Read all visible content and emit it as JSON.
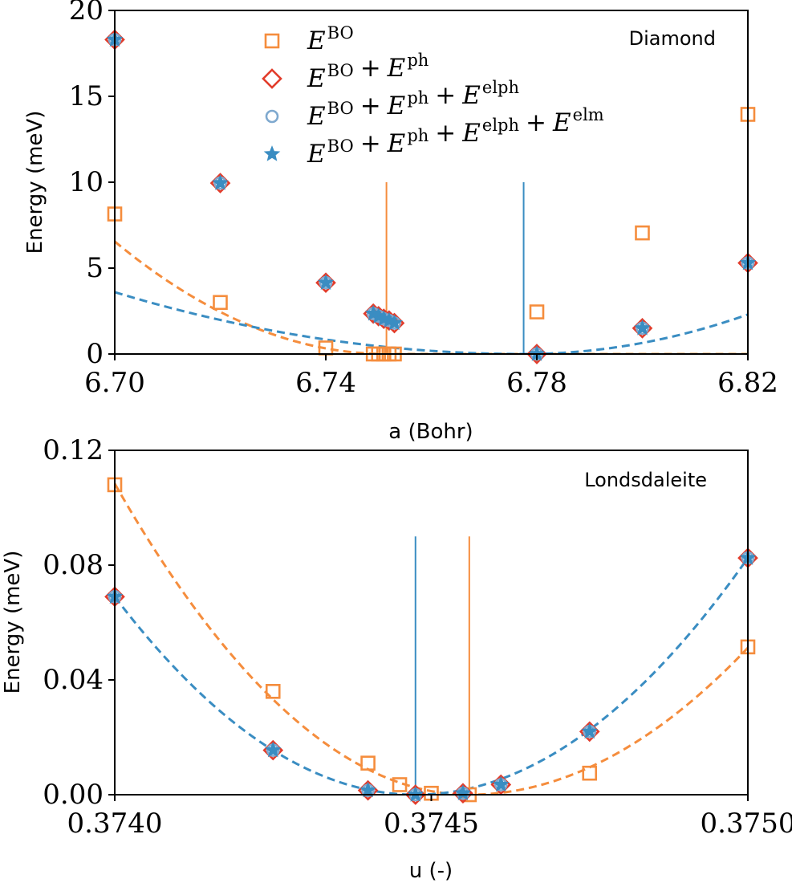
{
  "chart_data": [
    {
      "type": "line",
      "panel_label": "Diamond",
      "xlabel": "a (Bohr)",
      "ylabel": "Energy (meV)",
      "xlim": [
        6.7,
        6.82
      ],
      "ylim": [
        0,
        20
      ],
      "xticks": [
        6.7,
        6.74,
        6.78,
        6.82
      ],
      "xtick_labels": [
        "6.70",
        "6.74",
        "6.78",
        "6.82"
      ],
      "yticks": [
        0,
        5,
        10,
        15,
        20
      ],
      "ytick_labels": [
        "0",
        "5",
        "10",
        "15",
        "20"
      ],
      "legend": {
        "placement": "upper-center",
        "entries": [
          {
            "marker": "square",
            "color": "#f58d3d",
            "terms": [
              {
                "sym": "E",
                "sup": "BO"
              }
            ]
          },
          {
            "marker": "diamond",
            "color": "#e23c2b",
            "terms": [
              {
                "sym": "E",
                "sup": "BO"
              },
              {
                "sym": "E",
                "sup": "ph"
              }
            ]
          },
          {
            "marker": "circle",
            "color": "#7fa9cf",
            "terms": [
              {
                "sym": "E",
                "sup": "BO"
              },
              {
                "sym": "E",
                "sup": "ph"
              },
              {
                "sym": "E",
                "sup": "elph"
              }
            ]
          },
          {
            "marker": "star",
            "color": "#3a8dc2",
            "terms": [
              {
                "sym": "E",
                "sup": "BO"
              },
              {
                "sym": "E",
                "sup": "ph"
              },
              {
                "sym": "E",
                "sup": "elph"
              },
              {
                "sym": "E",
                "sup": "elm"
              }
            ]
          }
        ]
      },
      "fits": [
        {
          "color": "#f58d3d",
          "x0": 6.7515,
          "a": 6.55,
          "b": 0,
          "c": 0.0
        },
        {
          "color": "#3a8dc2",
          "x0": 6.7775,
          "a": 3.6,
          "b": 2.3,
          "c": 0.0
        }
      ],
      "vlines": [
        {
          "x": 6.7515,
          "y0": 0,
          "y1": 10,
          "color": "#f58d3d"
        },
        {
          "x": 6.7775,
          "y0": 0,
          "y1": 10,
          "color": "#3a8dc2"
        }
      ],
      "series": [
        {
          "marker": "square",
          "color": "#f58d3d",
          "x": [
            6.7,
            6.72,
            6.74,
            6.749,
            6.75,
            6.751,
            6.752,
            6.753,
            6.78,
            6.8,
            6.82
          ],
          "y": [
            8.15,
            3.0,
            0.35,
            0.0,
            0.0,
            0.0,
            0.0,
            0.0,
            2.45,
            7.05,
            13.95
          ]
        },
        {
          "marker": "diamond",
          "color": "#e23c2b",
          "x": [
            6.7,
            6.72,
            6.74,
            6.749,
            6.75,
            6.751,
            6.752,
            6.753,
            6.78,
            6.8,
            6.82
          ],
          "y": [
            18.3,
            9.95,
            4.15,
            2.35,
            2.2,
            2.05,
            1.95,
            1.8,
            0.0,
            1.5,
            5.3
          ]
        },
        {
          "marker": "circle",
          "color": "#7fa9cf",
          "x": [
            6.7,
            6.72,
            6.74,
            6.749,
            6.75,
            6.751,
            6.752,
            6.753,
            6.78,
            6.8,
            6.82
          ],
          "y": [
            18.3,
            9.95,
            4.15,
            2.35,
            2.2,
            2.05,
            1.95,
            1.8,
            0.0,
            1.5,
            5.3
          ]
        },
        {
          "marker": "star",
          "color": "#3a8dc2",
          "x": [
            6.7,
            6.72,
            6.74,
            6.749,
            6.75,
            6.751,
            6.752,
            6.753,
            6.78,
            6.8,
            6.82
          ],
          "y": [
            18.3,
            9.95,
            4.15,
            2.35,
            2.2,
            2.05,
            1.95,
            1.8,
            0.0,
            1.5,
            5.3
          ]
        }
      ]
    },
    {
      "type": "line",
      "panel_label": "Londsdaleite",
      "xlabel": "u (-)",
      "ylabel": "Energy (meV)",
      "xlim": [
        0.374,
        0.375
      ],
      "ylim": [
        0,
        0.12
      ],
      "xticks": [
        0.374,
        0.3745,
        0.375
      ],
      "xtick_labels": [
        "0.3740",
        "0.3745",
        "0.3750"
      ],
      "yticks": [
        0,
        0.04,
        0.08,
        0.12
      ],
      "ytick_labels": [
        "0.00",
        "0.04",
        "0.08",
        "0.12"
      ],
      "fits": [
        {
          "color": "#f58d3d",
          "x0": 0.37456,
          "a": 0.10838,
          "b": 0.0512,
          "c": 0.0
        },
        {
          "color": "#3a8dc2",
          "x0": 0.374475,
          "a": 0.069,
          "b": 0.0825,
          "c": 0.0
        }
      ],
      "vlines": [
        {
          "x": 0.374475,
          "y0": 0,
          "y1": 0.09,
          "color": "#3a8dc2"
        },
        {
          "x": 0.37456,
          "y0": 0,
          "y1": 0.09,
          "color": "#f58d3d"
        }
      ],
      "series": [
        {
          "marker": "square",
          "color": "#f58d3d",
          "x": [
            0.374,
            0.37425,
            0.3744,
            0.37445,
            0.3745,
            0.37456,
            0.37475,
            0.375
          ],
          "y": [
            0.108,
            0.036,
            0.011,
            0.0035,
            0.0005,
            0.0,
            0.0075,
            0.0515
          ]
        },
        {
          "marker": "diamond",
          "color": "#e23c2b",
          "x": [
            0.374,
            0.37425,
            0.3744,
            0.374475,
            0.37455,
            0.37461,
            0.37475,
            0.375
          ],
          "y": [
            0.069,
            0.0155,
            0.0015,
            0.0,
            0.0005,
            0.0035,
            0.022,
            0.0825
          ]
        },
        {
          "marker": "circle",
          "color": "#7fa9cf",
          "x": [
            0.374,
            0.37425,
            0.3744,
            0.374475,
            0.37455,
            0.37461,
            0.37475,
            0.375
          ],
          "y": [
            0.069,
            0.0155,
            0.0015,
            0.0,
            0.0005,
            0.0035,
            0.022,
            0.0825
          ]
        },
        {
          "marker": "star",
          "color": "#3a8dc2",
          "x": [
            0.374,
            0.37425,
            0.3744,
            0.374475,
            0.37455,
            0.37461,
            0.37475,
            0.375
          ],
          "y": [
            0.069,
            0.0155,
            0.0015,
            0.0,
            0.0005,
            0.0035,
            0.022,
            0.0825
          ]
        }
      ]
    }
  ]
}
